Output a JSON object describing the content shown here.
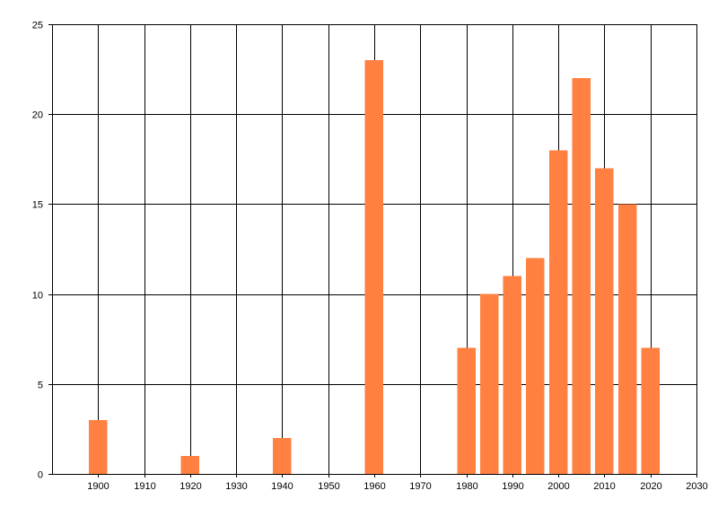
{
  "chart_data": {
    "type": "bar",
    "title": "",
    "xlabel": "",
    "ylabel": "",
    "x": [
      1900,
      1920,
      1940,
      1960,
      1980,
      1985,
      1990,
      1995,
      2000,
      2005,
      2010,
      2015,
      2020
    ],
    "values": [
      3,
      1,
      2,
      23,
      7,
      10,
      11,
      12,
      18,
      22,
      17,
      15,
      7
    ],
    "xlim": [
      1890,
      2030
    ],
    "ylim": [
      0,
      25
    ],
    "x_ticks": [
      "1900",
      "1910",
      "1920",
      "1930",
      "1940",
      "1950",
      "1960",
      "1970",
      "1980",
      "1990",
      "2000",
      "2010",
      "2020",
      "2030"
    ],
    "y_ticks": [
      "0",
      "5",
      "10",
      "15",
      "20",
      "25"
    ],
    "bar_color": "#ff8040",
    "grid": true,
    "legend": "none"
  }
}
